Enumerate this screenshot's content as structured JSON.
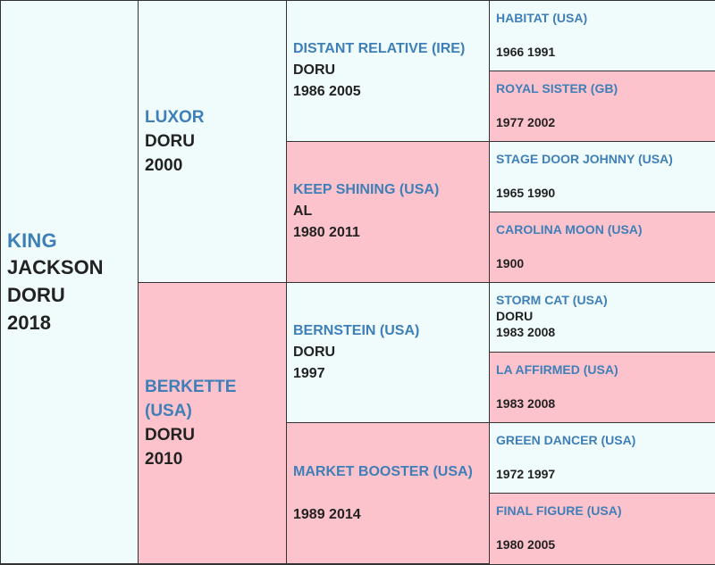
{
  "subject": {
    "name": "KING",
    "line2": "JACKSON",
    "line3": "DORU",
    "line4": "2018"
  },
  "sire": {
    "name": "LUXOR",
    "line2": "DORU",
    "line3": "2000"
  },
  "dam": {
    "name": "BERKETTE (USA)",
    "line2": "DORU",
    "line3": "2010"
  },
  "sire_sire": {
    "name": "DISTANT RELATIVE (IRE)",
    "line2": "DORU",
    "line3": "1986 2005"
  },
  "sire_dam": {
    "name": "KEEP SHINING (USA)",
    "line2": "AL",
    "line3": "1980 2011"
  },
  "dam_sire": {
    "name": "BERNSTEIN (USA)",
    "line2": "DORU",
    "line3": "1997"
  },
  "dam_dam": {
    "name": "MARKET BOOSTER (USA)",
    "line3": "1989 2014"
  },
  "gen4": [
    {
      "name": "HABITAT (USA)",
      "years": "1966 1991"
    },
    {
      "name": "ROYAL SISTER (GB)",
      "years": "1977 2002"
    },
    {
      "name": "STAGE DOOR JOHNNY (USA)",
      "years": "1965 1990"
    },
    {
      "name": "CAROLINA MOON (USA)",
      "years": "1900"
    },
    {
      "name": "STORM CAT (USA)",
      "line2": "DORU",
      "years": "1983 2008"
    },
    {
      "name": "LA AFFIRMED (USA)",
      "years": "1983 2008"
    },
    {
      "name": "GREEN DANCER (USA)",
      "years": "1972 1997"
    },
    {
      "name": "FINAL FIGURE (USA)",
      "years": "1980 2005"
    }
  ]
}
